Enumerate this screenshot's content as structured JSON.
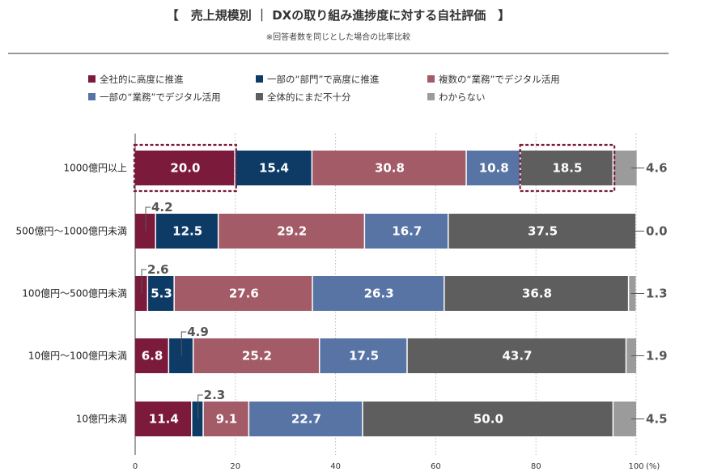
{
  "chart_data": {
    "type": "bar",
    "orientation": "horizontal",
    "stacked": true,
    "title": "【　売上規模別 ｜ DXの取り組み進捗度に対する自社評価　】",
    "subtitle": "※回答者数を同じとした場合の比率比較",
    "categories": [
      "1000億円以上",
      "500億円～1000億円未満",
      "100億円～500億円未満",
      "10億円～100億円未満",
      "10億円未満"
    ],
    "series": [
      {
        "name": "全社的に高度に推進",
        "color": "#7b1a3b",
        "values": [
          20.0,
          4.2,
          2.6,
          6.8,
          11.4
        ]
      },
      {
        "name": "一部の“部門”で高度に推進",
        "color": "#0d3b66",
        "values": [
          15.4,
          12.5,
          5.3,
          4.9,
          2.3
        ]
      },
      {
        "name": "複数の“業務”でデジタル活用",
        "color": "#a25b67",
        "values": [
          30.8,
          29.2,
          27.6,
          25.2,
          9.1
        ]
      },
      {
        "name": "一部の“業務”でデジタル活用",
        "color": "#5874a5",
        "values": [
          10.8,
          16.7,
          26.3,
          17.5,
          22.7
        ]
      },
      {
        "name": "全体的にまだ不十分",
        "color": "#5e5e5e",
        "values": [
          18.5,
          37.5,
          36.8,
          43.7,
          50.0
        ]
      },
      {
        "name": "わからない",
        "color": "#9b9b9b",
        "values": [
          4.6,
          0.0,
          1.3,
          1.9,
          4.5
        ]
      }
    ],
    "value_labels": [
      [
        "20.0",
        "15.4",
        "30.8",
        "10.8",
        "18.5",
        "4.6"
      ],
      [
        "4.2",
        "12.5",
        "29.2",
        "16.7",
        "37.5",
        "0.0"
      ],
      [
        "2.6",
        "5.3",
        "27.6",
        "26.3",
        "36.8",
        "1.3"
      ],
      [
        "6.8",
        "4.9",
        "25.2",
        "17.5",
        "43.7",
        "1.9"
      ],
      [
        "11.4",
        "2.3",
        "9.1",
        "22.7",
        "50.0",
        "4.5"
      ]
    ],
    "callouts": [
      {
        "row": 1,
        "series": 0,
        "side": "top"
      },
      {
        "row": 2,
        "series": 0,
        "side": "top"
      },
      {
        "row": 3,
        "series": 1,
        "side": "top"
      },
      {
        "row": 4,
        "series": 1,
        "side": "top"
      }
    ],
    "highlight_boxes": [
      {
        "row": 0,
        "series": 0
      },
      {
        "row": 0,
        "series": 4
      }
    ],
    "xlim": [
      0,
      100
    ],
    "xticks": [
      "0",
      "20",
      "40",
      "60",
      "80",
      "100"
    ],
    "x_unit": "(%)",
    "grid": "dotted vertical",
    "legend_position": "top"
  }
}
